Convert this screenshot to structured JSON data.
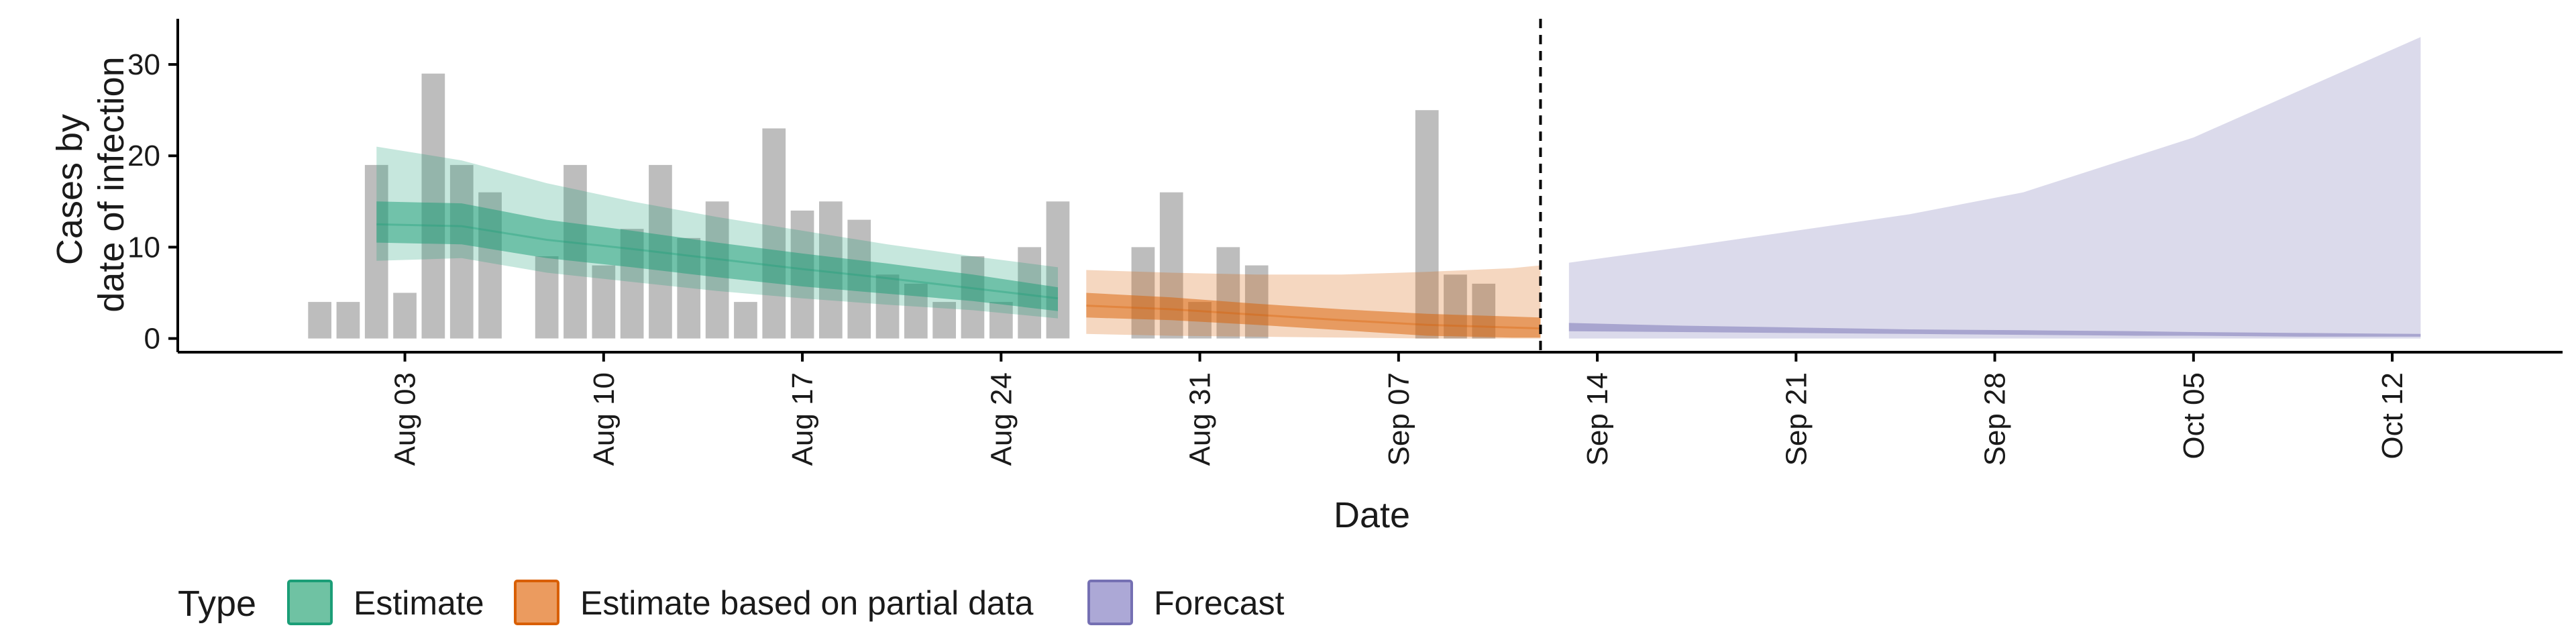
{
  "chart_data": {
    "type": "bar",
    "title": "",
    "xlabel": "Date",
    "ylabel_lines": [
      "Cases by",
      "date of infection"
    ],
    "xlim": [
      "2020-07-26",
      "2020-10-18"
    ],
    "ylim": [
      -1.5,
      35
    ],
    "y_ticks": [
      0,
      10,
      20,
      30
    ],
    "x_ticks": [
      {
        "date": "2020-08-03",
        "label": "Aug 03"
      },
      {
        "date": "2020-08-10",
        "label": "Aug 10"
      },
      {
        "date": "2020-08-17",
        "label": "Aug 17"
      },
      {
        "date": "2020-08-24",
        "label": "Aug 24"
      },
      {
        "date": "2020-08-31",
        "label": "Aug 31"
      },
      {
        "date": "2020-09-07",
        "label": "Sep 07"
      },
      {
        "date": "2020-09-14",
        "label": "Sep 14"
      },
      {
        "date": "2020-09-21",
        "label": "Sep 21"
      },
      {
        "date": "2020-09-28",
        "label": "Sep 28"
      },
      {
        "date": "2020-10-05",
        "label": "Oct 05"
      },
      {
        "date": "2020-10-12",
        "label": "Oct 12"
      }
    ],
    "grid": false,
    "forecast_start": "2020-09-12",
    "observed_cases": {
      "dates": [
        "2020-07-31",
        "2020-08-01",
        "2020-08-02",
        "2020-08-03",
        "2020-08-04",
        "2020-08-05",
        "2020-08-06",
        "2020-08-07",
        "2020-08-08",
        "2020-08-09",
        "2020-08-10",
        "2020-08-11",
        "2020-08-12",
        "2020-08-13",
        "2020-08-14",
        "2020-08-15",
        "2020-08-16",
        "2020-08-17",
        "2020-08-18",
        "2020-08-19",
        "2020-08-20",
        "2020-08-21",
        "2020-08-22",
        "2020-08-23",
        "2020-08-24",
        "2020-08-25",
        "2020-08-26",
        "2020-08-27",
        "2020-08-28",
        "2020-08-29",
        "2020-08-30",
        "2020-08-31",
        "2020-09-01",
        "2020-09-02",
        "2020-09-03",
        "2020-09-04",
        "2020-09-05",
        "2020-09-06",
        "2020-09-07",
        "2020-09-08",
        "2020-09-09",
        "2020-09-10",
        "2020-09-11"
      ],
      "values": [
        4,
        4,
        19,
        5,
        29,
        19,
        16,
        0,
        9,
        19,
        8,
        12,
        19,
        11,
        15,
        4,
        23,
        14,
        15,
        13,
        7,
        6,
        4,
        9,
        4,
        10,
        15,
        0,
        0,
        10,
        16,
        4,
        10,
        8,
        0,
        0,
        0,
        0,
        0,
        25,
        7,
        6,
        0
      ]
    },
    "series": [
      {
        "name": "Estimate",
        "color": "#1b9e77",
        "dates": [
          "2020-08-02",
          "2020-08-05",
          "2020-08-08",
          "2020-08-11",
          "2020-08-14",
          "2020-08-17",
          "2020-08-20",
          "2020-08-23",
          "2020-08-26"
        ],
        "median": [
          12.5,
          12.3,
          10.8,
          9.8,
          8.7,
          7.6,
          6.6,
          5.5,
          4.4
        ],
        "lower_50": [
          10.5,
          10.3,
          8.8,
          7.8,
          6.7,
          5.7,
          4.9,
          4.1,
          3.0
        ],
        "upper_50": [
          15.0,
          14.8,
          13.0,
          11.8,
          10.5,
          9.3,
          8.2,
          7.0,
          5.6
        ],
        "lower_90": [
          8.5,
          8.8,
          7.2,
          6.2,
          5.2,
          4.4,
          3.7,
          3.1,
          2.2
        ],
        "upper_90": [
          21.0,
          19.5,
          17.0,
          15.0,
          13.3,
          11.8,
          10.3,
          9.0,
          7.8
        ]
      },
      {
        "name": "Estimate based on partial data",
        "color": "#d95f02",
        "dates": [
          "2020-08-27",
          "2020-08-30",
          "2020-09-02",
          "2020-09-05",
          "2020-09-08",
          "2020-09-11",
          "2020-09-12"
        ],
        "median": [
          3.6,
          3.2,
          2.6,
          2.0,
          1.5,
          1.2,
          1.1
        ],
        "lower_50": [
          2.3,
          2.0,
          1.5,
          0.9,
          0.3,
          0.1,
          0.1
        ],
        "upper_50": [
          5.0,
          4.5,
          3.8,
          3.2,
          2.7,
          2.4,
          2.3
        ],
        "lower_90": [
          0.5,
          0.3,
          0.2,
          0.1,
          0.0,
          0.0,
          0.0
        ],
        "upper_90": [
          7.5,
          7.2,
          7.0,
          7.0,
          7.3,
          7.7,
          8.0
        ]
      },
      {
        "name": "Forecast",
        "color": "#7570b3",
        "dates": [
          "2020-09-13",
          "2020-09-17",
          "2020-09-21",
          "2020-09-25",
          "2020-09-29",
          "2020-10-03",
          "2020-10-05",
          "2020-10-09",
          "2020-10-13"
        ],
        "lower_90": [
          0.0,
          0.0,
          0.0,
          0.0,
          0.0,
          0.0,
          0.0,
          0.0,
          0.0
        ],
        "upper_90": [
          8.3,
          10.0,
          11.8,
          13.6,
          16.0,
          20.0,
          22.0,
          27.5,
          33.0
        ],
        "lower_50": [
          0.8,
          0.7,
          0.6,
          0.5,
          0.4,
          0.3,
          0.3,
          0.2,
          0.2
        ],
        "upper_50": [
          1.7,
          1.4,
          1.2,
          1.0,
          0.9,
          0.8,
          0.7,
          0.6,
          0.5
        ]
      }
    ],
    "legend": {
      "title": "Type",
      "position": "bottom-left",
      "entries": [
        "Estimate",
        "Estimate based on partial data",
        "Forecast"
      ]
    }
  }
}
